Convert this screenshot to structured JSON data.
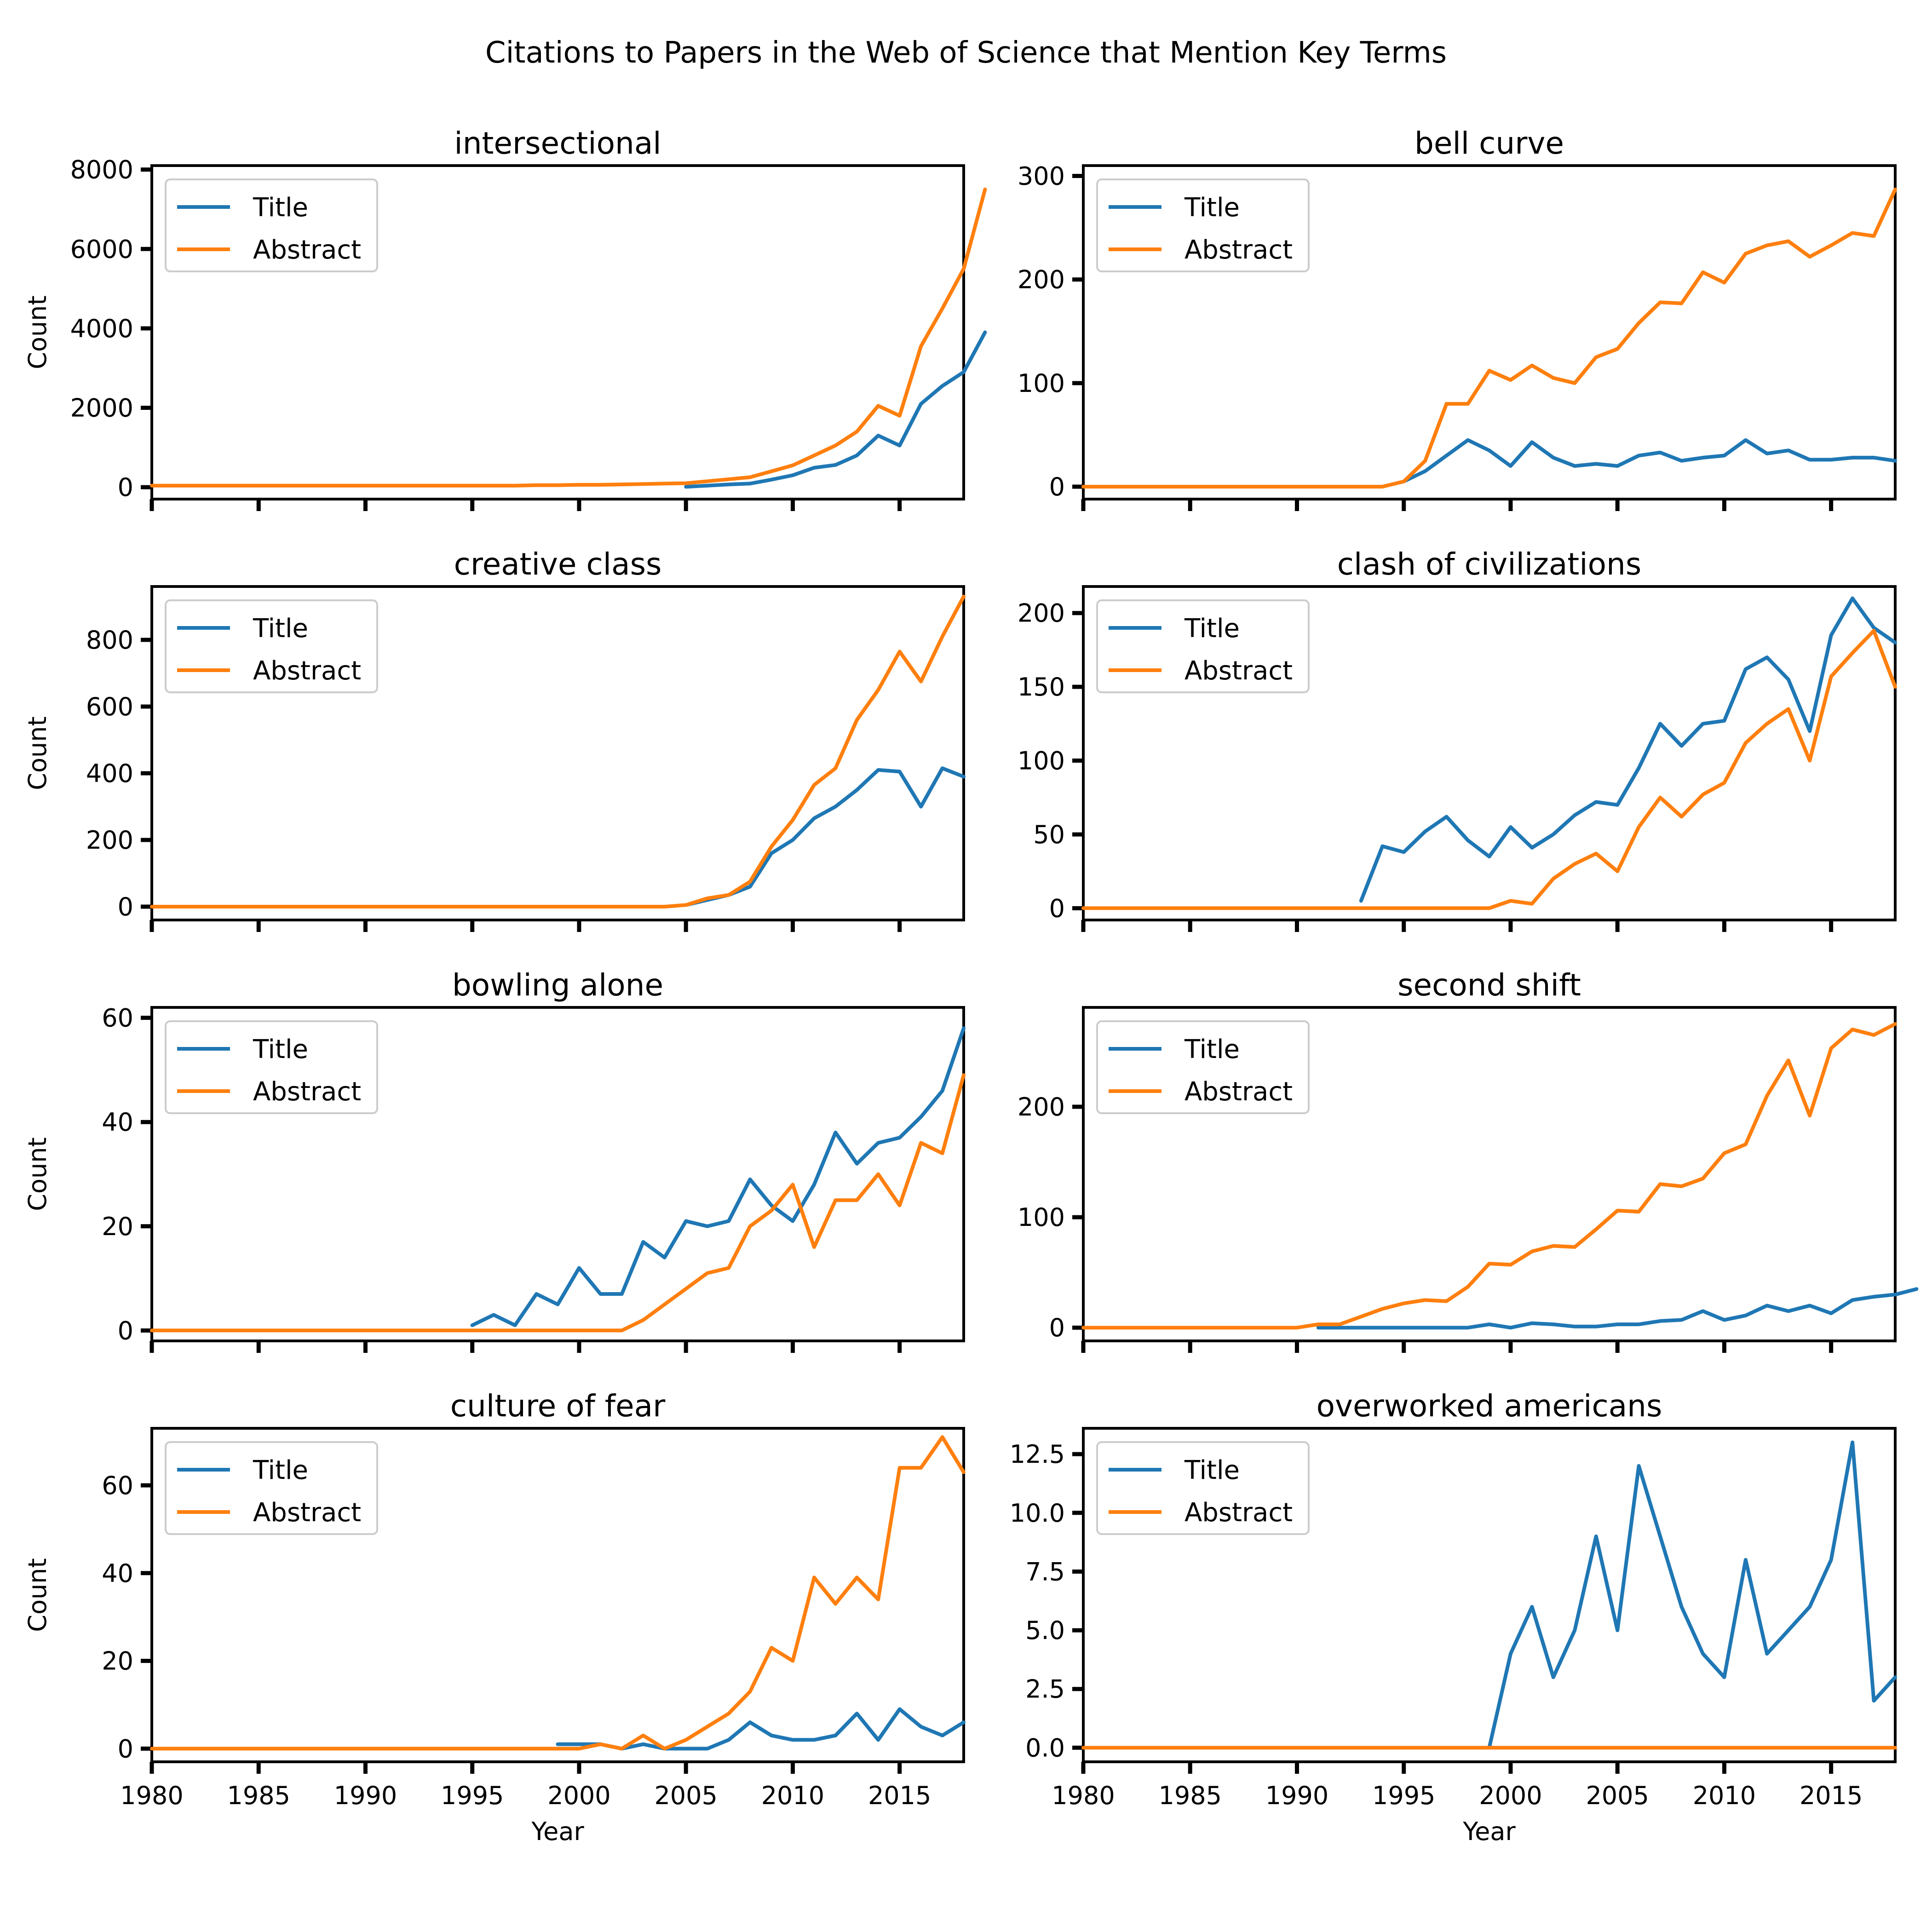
{
  "figure": {
    "title": "Citations to Papers in the Web of Science that Mention Key Terms"
  },
  "colors": {
    "Title": "#1f77b4",
    "Abstract": "#ff7f0e"
  },
  "legend_position": "upper left",
  "chart_data": [
    {
      "type": "line",
      "title": "intersectional",
      "xlabel": "",
      "ylabel": "Count",
      "xlim": [
        1980,
        2018
      ],
      "ylim": [
        -300,
        8100
      ],
      "xticks": [
        1980,
        1985,
        1990,
        1995,
        2000,
        2005,
        2010,
        2015
      ],
      "show_xticklabels": false,
      "yticks": [
        0,
        2000,
        4000,
        6000,
        8000
      ],
      "yticklabels": [
        "0",
        "2000",
        "4000",
        "6000",
        "8000"
      ],
      "series": [
        {
          "name": "Title",
          "start": 2005,
          "values": [
            10,
            40,
            70,
            90,
            190,
            300,
            490,
            560,
            800,
            1300,
            1050,
            2100,
            2550,
            2900,
            3900
          ]
        },
        {
          "name": "Abstract",
          "start": 1980,
          "values": [
            40,
            40,
            40,
            40,
            40,
            40,
            40,
            40,
            40,
            40,
            40,
            40,
            40,
            40,
            40,
            40,
            40,
            40,
            50,
            50,
            60,
            60,
            70,
            80,
            90,
            100,
            150,
            200,
            250,
            400,
            550,
            800,
            1050,
            1400,
            2050,
            1800,
            3550,
            4500,
            5500,
            7500
          ]
        }
      ]
    },
    {
      "type": "line",
      "title": "bell curve",
      "xlabel": "",
      "ylabel": "",
      "xlim": [
        1980,
        2018
      ],
      "ylim": [
        -12,
        310
      ],
      "xticks": [
        1980,
        1985,
        1990,
        1995,
        2000,
        2005,
        2010,
        2015
      ],
      "show_xticklabels": false,
      "yticks": [
        0,
        100,
        200,
        300
      ],
      "yticklabels": [
        "0",
        "100",
        "200",
        "300"
      ],
      "series": [
        {
          "name": "Title",
          "start": 1995,
          "values": [
            5,
            15,
            30,
            45,
            35,
            20,
            43,
            28,
            20,
            22,
            20,
            30,
            33,
            25,
            28,
            30,
            45,
            32,
            35,
            26,
            26,
            28,
            28,
            25
          ]
        },
        {
          "name": "Abstract",
          "start": 1980,
          "values": [
            0,
            0,
            0,
            0,
            0,
            0,
            0,
            0,
            0,
            0,
            0,
            0,
            0,
            0,
            0,
            5,
            25,
            80,
            80,
            112,
            103,
            117,
            105,
            100,
            125,
            133,
            158,
            178,
            177,
            207,
            197,
            225,
            233,
            237,
            222,
            233,
            245,
            242,
            287
          ]
        }
      ]
    },
    {
      "type": "line",
      "title": "creative class",
      "xlabel": "",
      "ylabel": "Count",
      "xlim": [
        1980,
        2018
      ],
      "ylim": [
        -40,
        960
      ],
      "xticks": [
        1980,
        1985,
        1990,
        1995,
        2000,
        2005,
        2010,
        2015
      ],
      "show_xticklabels": false,
      "yticks": [
        0,
        200,
        400,
        600,
        800
      ],
      "yticklabels": [
        "0",
        "200",
        "400",
        "600",
        "800"
      ],
      "series": [
        {
          "name": "Title",
          "start": 2005,
          "values": [
            5,
            20,
            35,
            60,
            160,
            200,
            265,
            300,
            350,
            410,
            405,
            300,
            415,
            390
          ]
        },
        {
          "name": "Abstract",
          "start": 1980,
          "values": [
            0,
            0,
            0,
            0,
            0,
            0,
            0,
            0,
            0,
            0,
            0,
            0,
            0,
            0,
            0,
            0,
            0,
            0,
            0,
            0,
            0,
            0,
            0,
            0,
            0,
            5,
            25,
            35,
            75,
            180,
            260,
            365,
            415,
            560,
            650,
            765,
            675,
            810,
            930
          ]
        }
      ]
    },
    {
      "type": "line",
      "title": "clash of civilizations",
      "xlabel": "",
      "ylabel": "",
      "xlim": [
        1980,
        2018
      ],
      "ylim": [
        -8,
        218
      ],
      "xticks": [
        1980,
        1985,
        1990,
        1995,
        2000,
        2005,
        2010,
        2015
      ],
      "show_xticklabels": false,
      "yticks": [
        0,
        50,
        100,
        150,
        200
      ],
      "yticklabels": [
        "0",
        "50",
        "100",
        "150",
        "200"
      ],
      "series": [
        {
          "name": "Title",
          "start": 1993,
          "values": [
            5,
            42,
            38,
            52,
            62,
            46,
            35,
            55,
            41,
            50,
            63,
            72,
            70,
            95,
            125,
            110,
            125,
            127,
            162,
            170,
            155,
            120,
            185,
            210,
            190,
            180
          ]
        },
        {
          "name": "Abstract",
          "start": 1980,
          "values": [
            0,
            0,
            0,
            0,
            0,
            0,
            0,
            0,
            0,
            0,
            0,
            0,
            0,
            0,
            0,
            0,
            0,
            0,
            0,
            0,
            5,
            3,
            20,
            30,
            37,
            25,
            55,
            75,
            62,
            77,
            85,
            112,
            125,
            135,
            100,
            157,
            173,
            188,
            150
          ]
        }
      ]
    },
    {
      "type": "line",
      "title": "bowling alone",
      "xlabel": "",
      "ylabel": "Count",
      "xlim": [
        1980,
        2018
      ],
      "ylim": [
        -2,
        62
      ],
      "xticks": [
        1980,
        1985,
        1990,
        1995,
        2000,
        2005,
        2010,
        2015
      ],
      "show_xticklabels": false,
      "yticks": [
        0,
        20,
        40,
        60
      ],
      "yticklabels": [
        "0",
        "20",
        "40",
        "60"
      ],
      "series": [
        {
          "name": "Title",
          "start": 1995,
          "values": [
            1,
            3,
            1,
            7,
            5,
            12,
            7,
            7,
            17,
            14,
            21,
            20,
            21,
            29,
            24,
            21,
            28,
            38,
            32,
            36,
            37,
            41,
            46,
            58
          ]
        },
        {
          "name": "Abstract",
          "start": 1980,
          "values": [
            0,
            0,
            0,
            0,
            0,
            0,
            0,
            0,
            0,
            0,
            0,
            0,
            0,
            0,
            0,
            0,
            0,
            0,
            0,
            0,
            0,
            0,
            0,
            2,
            5,
            8,
            11,
            12,
            20,
            23,
            28,
            16,
            25,
            25,
            30,
            24,
            36,
            34,
            49
          ]
        }
      ]
    },
    {
      "type": "line",
      "title": "second shift",
      "xlabel": "",
      "ylabel": "",
      "xlim": [
        1980,
        2018
      ],
      "ylim": [
        -12,
        290
      ],
      "xticks": [
        1980,
        1985,
        1990,
        1995,
        2000,
        2005,
        2010,
        2015
      ],
      "show_xticklabels": false,
      "yticks": [
        0,
        100,
        200
      ],
      "yticklabels": [
        "0",
        "100",
        "200"
      ],
      "series": [
        {
          "name": "Title",
          "start": 1991,
          "values": [
            0,
            0,
            0,
            0,
            0,
            0,
            0,
            0,
            3,
            0,
            4,
            3,
            1,
            1,
            3,
            3,
            6,
            7,
            15,
            7,
            11,
            20,
            15,
            20,
            13,
            25,
            28,
            30,
            35
          ]
        },
        {
          "name": "Abstract",
          "start": 1980,
          "values": [
            0,
            0,
            0,
            0,
            0,
            0,
            0,
            0,
            0,
            0,
            0,
            3,
            3,
            10,
            17,
            22,
            25,
            24,
            37,
            58,
            57,
            69,
            74,
            73,
            89,
            106,
            105,
            130,
            128,
            135,
            158,
            166,
            210,
            242,
            192,
            253,
            270,
            265,
            275
          ]
        }
      ]
    },
    {
      "type": "line",
      "title": "culture of fear",
      "xlabel": "Year",
      "ylabel": "Count",
      "xlim": [
        1980,
        2018
      ],
      "ylim": [
        -3,
        73
      ],
      "xticks": [
        1980,
        1985,
        1990,
        1995,
        2000,
        2005,
        2010,
        2015
      ],
      "show_xticklabels": true,
      "xticklabels": [
        "1980",
        "1985",
        "1990",
        "1995",
        "2000",
        "2005",
        "2010",
        "2015"
      ],
      "yticks": [
        0,
        20,
        40,
        60
      ],
      "yticklabels": [
        "0",
        "20",
        "40",
        "60"
      ],
      "series": [
        {
          "name": "Title",
          "start": 1999,
          "values": [
            1,
            1,
            1,
            0,
            1,
            0,
            0,
            0,
            2,
            6,
            3,
            2,
            2,
            3,
            8,
            2,
            9,
            5,
            3,
            6
          ]
        },
        {
          "name": "Abstract",
          "start": 1980,
          "values": [
            0,
            0,
            0,
            0,
            0,
            0,
            0,
            0,
            0,
            0,
            0,
            0,
            0,
            0,
            0,
            0,
            0,
            0,
            0,
            0,
            0,
            1,
            0,
            3,
            0,
            2,
            5,
            8,
            13,
            23,
            20,
            39,
            33,
            39,
            34,
            64,
            64,
            71,
            63
          ]
        }
      ]
    },
    {
      "type": "line",
      "title": "overworked americans",
      "xlabel": "Year",
      "ylabel": "",
      "xlim": [
        1980,
        2018
      ],
      "ylim": [
        -0.6,
        13.6
      ],
      "xticks": [
        1980,
        1985,
        1990,
        1995,
        2000,
        2005,
        2010,
        2015
      ],
      "show_xticklabels": true,
      "xticklabels": [
        "1980",
        "1985",
        "1990",
        "1995",
        "2000",
        "2005",
        "2010",
        "2015"
      ],
      "yticks": [
        0,
        2.5,
        5,
        7.5,
        10,
        12.5
      ],
      "yticklabels": [
        "0.0",
        "2.5",
        "5.0",
        "7.5",
        "10.0",
        "12.5"
      ],
      "series": [
        {
          "name": "Title",
          "start": 1999,
          "values": [
            0,
            4,
            6,
            3,
            5,
            9,
            5,
            12,
            9,
            6,
            4,
            3,
            8,
            4,
            5,
            6,
            8,
            13,
            2,
            3
          ]
        },
        {
          "name": "Abstract",
          "start": 1980,
          "values": [
            0,
            0,
            0,
            0,
            0,
            0,
            0,
            0,
            0,
            0,
            0,
            0,
            0,
            0,
            0,
            0,
            0,
            0,
            0,
            0,
            0,
            0,
            0,
            0,
            0,
            0,
            0,
            0,
            0,
            0,
            0,
            0,
            0,
            0,
            0,
            0,
            0,
            0,
            0
          ]
        }
      ]
    }
  ]
}
